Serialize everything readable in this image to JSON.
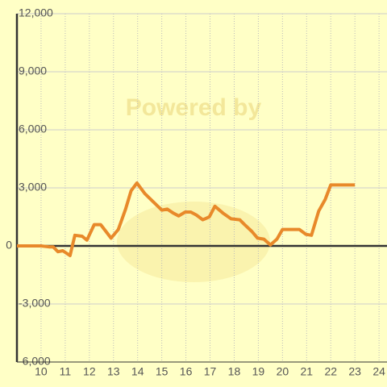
{
  "chart_data": {
    "type": "line",
    "watermark": "Powered by",
    "x": [
      9,
      10,
      10.33,
      10.5,
      10.7,
      10.9,
      11.2,
      11.4,
      11.7,
      11.9,
      12.2,
      12.47,
      12.9,
      13.2,
      13.5,
      13.73,
      13.97,
      14.3,
      14.63,
      15.0,
      15.23,
      15.47,
      15.7,
      15.97,
      16.2,
      16.43,
      16.7,
      16.97,
      17.2,
      17.53,
      17.87,
      18.23,
      18.43,
      18.73,
      18.97,
      19.23,
      19.5,
      19.77,
      20.0,
      20.7,
      20.97,
      21.2,
      21.5,
      21.77,
      22.0,
      23.0
    ],
    "series": [
      {
        "name": null,
        "color": "#e8892a",
        "values": [
          0,
          0,
          -50,
          -50,
          -300,
          -250,
          -500,
          550,
          500,
          300,
          1100,
          1100,
          400,
          850,
          1900,
          2850,
          3250,
          2700,
          2300,
          1850,
          1900,
          1700,
          1550,
          1750,
          1750,
          1600,
          1350,
          1500,
          2050,
          1700,
          1400,
          1350,
          1100,
          750,
          400,
          350,
          50,
          350,
          850,
          850,
          600,
          550,
          1800,
          2400,
          3150,
          3150
        ]
      }
    ],
    "xlim": [
      9,
      24.33
    ],
    "xticks": [
      10,
      11,
      12,
      13,
      14,
      15,
      16,
      17,
      18,
      19,
      20,
      21,
      22,
      23,
      24
    ],
    "ylim": [
      -6000,
      12000
    ],
    "yticks": [
      {
        "value": -6000,
        "label": "-6,000"
      },
      {
        "value": -3000,
        "label": "-3,000"
      },
      0,
      {
        "value": 3000,
        "label": "3,000"
      },
      {
        "value": 6000,
        "label": "6,000"
      },
      {
        "value": 9000,
        "label": "9,000"
      },
      {
        "value": 12000,
        "label": "12,000"
      }
    ],
    "grid": true
  }
}
